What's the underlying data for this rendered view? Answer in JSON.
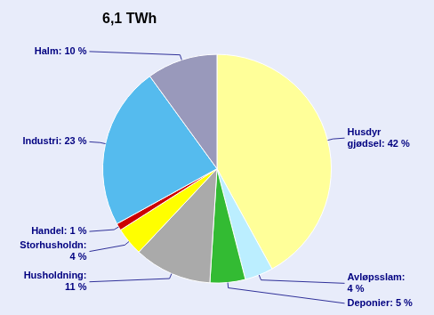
{
  "chart_data": {
    "type": "pie",
    "title": "6,1 TWh",
    "categories": [
      "Husdyr\ngjødsel: 42 %",
      "Avløpsslam:\n4 %",
      "Deponier: 5 %",
      "Husholdning:\n11 %",
      "Storhusholdn:\n4 %",
      "Handel: 1 %",
      "Industri: 23 %",
      "Halm: 10 %"
    ],
    "values": [
      42,
      4,
      5,
      11,
      4,
      1,
      23,
      10
    ],
    "colors": [
      "#FFFF99",
      "#BBEEFF",
      "#33BB33",
      "#AAAAAA",
      "#FFFF00",
      "#CC0000",
      "#55BBEE",
      "#9999BB"
    ]
  }
}
